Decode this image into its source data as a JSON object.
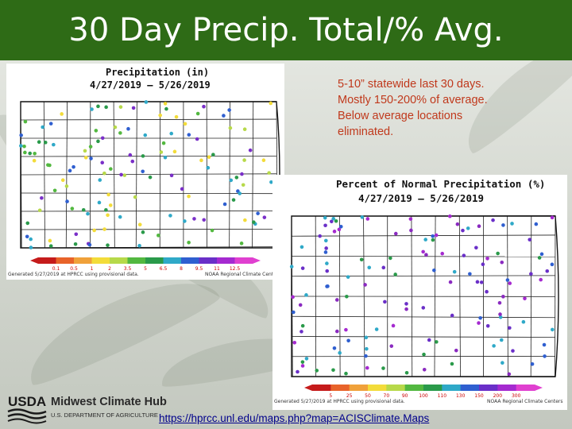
{
  "slide": {
    "title": "30 Day Precip. Total/% Avg.",
    "note": "5-10” statewide last 30 days.  Mostly 150-200% of average.  Below average locations eliminated.",
    "link": "https://hprcc.unl.edu/maps.php?map=ACISClimate.Maps"
  },
  "logo": {
    "usda": "USDA",
    "hub": "Midwest Climate Hub",
    "dept": "U.S. DEPARTMENT OF AGRICULTURE"
  },
  "map_precip": {
    "title": "Precipitation (in)",
    "dates": "4/27/2019 – 5/26/2019",
    "generated": "Generated 5/27/2019 at HPRCC using provisional data.",
    "credit": "NOAA Regional Climate Centers",
    "scale_labels": [
      "0.1",
      "0.5",
      "1",
      "2",
      "3.5",
      "5",
      "6.5",
      "8",
      "9.5",
      "11",
      "12.5"
    ]
  },
  "map_percent": {
    "title": "Percent of Normal Precipitation (%)",
    "dates": "4/27/2019 – 5/26/2019",
    "generated": "Generated 5/27/2019 at HPRCC using provisional data.",
    "credit": "NOAA Regional Climate Centers",
    "scale_labels": [
      "5",
      "25",
      "50",
      "70",
      "90",
      "100",
      "110",
      "130",
      "150",
      "200",
      "300"
    ]
  },
  "colors": {
    "title_bar": "#2e6b16",
    "note_text": "#c0391c",
    "link": "#00008b",
    "county_lines": "#222222"
  },
  "icons": [
    "usda-logo-icon"
  ]
}
